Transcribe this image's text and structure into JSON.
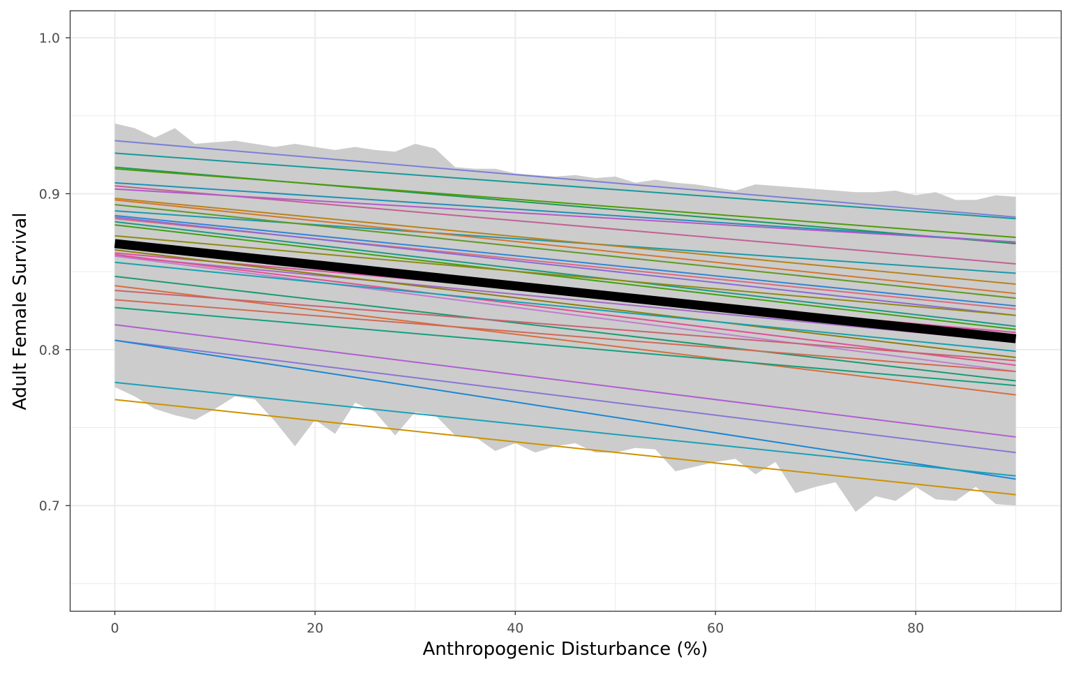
{
  "chart_data": {
    "type": "line",
    "title": "",
    "xlabel": "Anthropogenic Disturbance (%)",
    "ylabel": "Adult Female Survival",
    "xlim": [
      -4.5,
      94.5
    ],
    "ylim": [
      0.6325,
      1.0175
    ],
    "x_ticks": [
      0,
      20,
      40,
      60,
      80
    ],
    "x_tick_labels": [
      "0",
      "20",
      "40",
      "60",
      "80"
    ],
    "y_ticks": [
      0.7,
      0.8,
      0.9,
      1.0
    ],
    "y_tick_labels": [
      "0.7",
      "0.8",
      "0.9",
      "1.0"
    ],
    "grid": true,
    "legend": "none",
    "band": {
      "fill": "#cccccc",
      "x": [
        0,
        2,
        4,
        6,
        8,
        10,
        12,
        14,
        16,
        18,
        20,
        22,
        24,
        26,
        28,
        30,
        32,
        34,
        36,
        38,
        40,
        42,
        44,
        46,
        48,
        50,
        52,
        54,
        56,
        58,
        60,
        62,
        64,
        66,
        68,
        70,
        72,
        74,
        76,
        78,
        80,
        82,
        84,
        86,
        88,
        90
      ],
      "upper": [
        0.945,
        0.942,
        0.936,
        0.942,
        0.932,
        0.933,
        0.934,
        0.932,
        0.93,
        0.932,
        0.93,
        0.928,
        0.93,
        0.928,
        0.927,
        0.932,
        0.929,
        0.917,
        0.916,
        0.916,
        0.913,
        0.912,
        0.911,
        0.912,
        0.91,
        0.911,
        0.907,
        0.909,
        0.907,
        0.906,
        0.904,
        0.902,
        0.906,
        0.905,
        0.904,
        0.903,
        0.902,
        0.901,
        0.901,
        0.902,
        0.899,
        0.901,
        0.896,
        0.896,
        0.899,
        0.898
      ],
      "lower": [
        0.776,
        0.77,
        0.762,
        0.758,
        0.755,
        0.762,
        0.77,
        0.768,
        0.754,
        0.738,
        0.755,
        0.746,
        0.766,
        0.76,
        0.745,
        0.76,
        0.758,
        0.745,
        0.744,
        0.735,
        0.74,
        0.734,
        0.738,
        0.74,
        0.734,
        0.734,
        0.737,
        0.736,
        0.722,
        0.725,
        0.728,
        0.73,
        0.72,
        0.728,
        0.708,
        0.712,
        0.715,
        0.696,
        0.706,
        0.703,
        0.712,
        0.704,
        0.703,
        0.712,
        0.701,
        0.7
      ]
    },
    "series": [
      {
        "color": "#7b7fd6",
        "values": [
          0.934,
          0.885
        ]
      },
      {
        "color": "#16999a",
        "values": [
          0.926,
          0.884
        ]
      },
      {
        "color": "#1a9a58",
        "values": [
          0.917,
          0.868
        ]
      },
      {
        "color": "#4f9a0c",
        "values": [
          0.916,
          0.872
        ]
      },
      {
        "color": "#1f90b6",
        "values": [
          0.907,
          0.869
        ]
      },
      {
        "color": "#c26095",
        "values": [
          0.905,
          0.855
        ]
      },
      {
        "color": "#b45ac8",
        "values": [
          0.903,
          0.869
        ]
      },
      {
        "color": "#1a9aa8",
        "values": [
          0.889,
          0.849
        ]
      },
      {
        "color": "#b7831a",
        "values": [
          0.897,
          0.842
        ]
      },
      {
        "color": "#d4762e",
        "values": [
          0.896,
          0.836
        ]
      },
      {
        "color": "#5d9a22",
        "values": [
          0.893,
          0.833
        ]
      },
      {
        "color": "#3185d4",
        "values": [
          0.886,
          0.828
        ]
      },
      {
        "color": "#da6a80",
        "values": [
          0.884,
          0.826
        ]
      },
      {
        "color": "#8a6ad6",
        "values": [
          0.885,
          0.822
        ]
      },
      {
        "color": "#1a9a88",
        "values": [
          0.882,
          0.815
        ]
      },
      {
        "color": "#3ea20c",
        "values": [
          0.88,
          0.813
        ]
      },
      {
        "color": "#8e8a16",
        "values": [
          0.873,
          0.822
        ]
      },
      {
        "color": "#d9519e",
        "values": [
          0.862,
          0.811
        ]
      },
      {
        "color": "#a368c8",
        "values": [
          0.86,
          0.805
        ]
      },
      {
        "color": "#8f7d0e",
        "values": [
          0.864,
          0.795
        ]
      },
      {
        "color": "#e24f95",
        "values": [
          0.861,
          0.79
        ]
      },
      {
        "color": "#c07ed0",
        "values": [
          0.86,
          0.786
        ]
      },
      {
        "color": "#14a3b0",
        "values": [
          0.856,
          0.799
        ]
      },
      {
        "color": "#1b9a6e",
        "values": [
          0.847,
          0.78
        ]
      },
      {
        "color": "#d66e3e",
        "values": [
          0.841,
          0.771
        ]
      },
      {
        "color": "#c86470",
        "values": [
          0.838,
          0.793
        ]
      },
      {
        "color": "#d06a55",
        "values": [
          0.832,
          0.786
        ]
      },
      {
        "color": "#13a07a",
        "values": [
          0.827,
          0.777
        ]
      },
      {
        "color": "#ae5fd0",
        "values": [
          0.816,
          0.744
        ]
      },
      {
        "color": "#8875d6",
        "values": [
          0.806,
          0.734
        ]
      },
      {
        "color": "#1a87d4",
        "values": [
          0.806,
          0.717
        ]
      },
      {
        "color": "#1aa0b6",
        "values": [
          0.779,
          0.719
        ]
      },
      {
        "color": "#cc9200",
        "values": [
          0.768,
          0.707
        ]
      }
    ],
    "series_x": [
      0,
      90
    ],
    "mean_line": {
      "color": "#000000",
      "values": [
        0.868,
        0.807
      ]
    }
  }
}
